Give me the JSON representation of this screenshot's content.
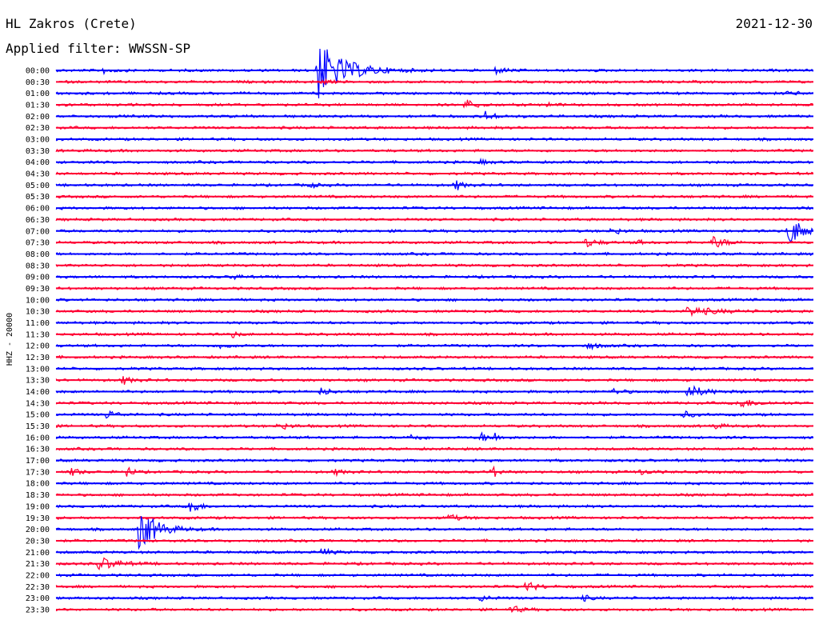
{
  "header": {
    "station": "HL Zakros (Crete)",
    "filter": "Applied filter: WWSSN-SP",
    "date": "2021-12-30"
  },
  "chart_data": {
    "type": "line",
    "title": "HL Zakros (Crete)",
    "subtitle": "Applied filter: WWSSN-SP",
    "ylabel": "HHZ - 20000",
    "colors": [
      "#0000ff",
      "#ff0033"
    ],
    "row_labels": [
      "00:00",
      "00:30",
      "01:00",
      "01:30",
      "02:00",
      "02:30",
      "03:00",
      "03:30",
      "04:00",
      "04:30",
      "05:00",
      "05:30",
      "06:00",
      "06:30",
      "07:00",
      "07:30",
      "08:00",
      "08:30",
      "09:00",
      "09:30",
      "10:00",
      "10:30",
      "11:00",
      "11:30",
      "12:00",
      "12:30",
      "13:00",
      "13:30",
      "14:00",
      "14:30",
      "15:00",
      "15:30",
      "16:00",
      "16:30",
      "17:00",
      "17:30",
      "18:00",
      "18:30",
      "19:00",
      "19:30",
      "20:00",
      "20:30",
      "21:00",
      "21:30",
      "22:00",
      "22:30",
      "23:00",
      "23:30"
    ],
    "row_minutes": 30,
    "events": [
      {
        "row": 0,
        "t": 10.3,
        "amp": 40,
        "dur": 1.6
      },
      {
        "row": 0,
        "t": 1.8,
        "amp": 4,
        "dur": 0.6
      },
      {
        "row": 0,
        "t": 17.4,
        "amp": 4,
        "dur": 0.6
      },
      {
        "row": 1,
        "t": 10.5,
        "amp": 3,
        "dur": 0.4
      },
      {
        "row": 2,
        "t": 29.0,
        "amp": 3,
        "dur": 0.5
      },
      {
        "row": 3,
        "t": 16.2,
        "amp": 7,
        "dur": 0.6
      },
      {
        "row": 3,
        "t": 0.2,
        "amp": 3,
        "dur": 0.3
      },
      {
        "row": 3,
        "t": 19.4,
        "amp": 3,
        "dur": 0.4
      },
      {
        "row": 3,
        "t": 31.5,
        "amp": 3,
        "dur": 0.3
      },
      {
        "row": 4,
        "t": 17.0,
        "amp": 6,
        "dur": 0.6
      },
      {
        "row": 4,
        "t": 42.4,
        "amp": 20,
        "dur": 1.0
      },
      {
        "row": 4,
        "t": 33.0,
        "amp": 95,
        "dur": 2.5
      },
      {
        "row": 5,
        "t": 33.0,
        "amp": 35,
        "dur": 1.5
      },
      {
        "row": 8,
        "t": 16.8,
        "amp": 3,
        "dur": 0.4
      },
      {
        "row": 9,
        "t": 50.0,
        "amp": 6,
        "dur": 0.8
      },
      {
        "row": 9,
        "t": 45.5,
        "amp": 4,
        "dur": 0.5
      },
      {
        "row": 10,
        "t": 15.8,
        "amp": 8,
        "dur": 0.4
      },
      {
        "row": 10,
        "t": 10.0,
        "amp": 4,
        "dur": 0.4
      },
      {
        "row": 10,
        "t": 32.8,
        "amp": 120,
        "dur": 3.0
      },
      {
        "row": 11,
        "t": 38.0,
        "amp": 9,
        "dur": 1.0
      },
      {
        "row": 11,
        "t": 53.1,
        "amp": 30,
        "dur": 1.4
      },
      {
        "row": 13,
        "t": 40.6,
        "amp": 6,
        "dur": 0.6
      },
      {
        "row": 13,
        "t": 53.0,
        "amp": 45,
        "dur": 1.8
      },
      {
        "row": 14,
        "t": 22.0,
        "amp": 5,
        "dur": 0.5
      },
      {
        "row": 14,
        "t": 29.0,
        "amp": 18,
        "dur": 1.0
      },
      {
        "row": 15,
        "t": 21.0,
        "amp": 6,
        "dur": 0.6
      },
      {
        "row": 15,
        "t": 26.0,
        "amp": 8,
        "dur": 0.7
      },
      {
        "row": 15,
        "t": 23.0,
        "amp": 3,
        "dur": 0.4
      },
      {
        "row": 18,
        "t": 7.0,
        "amp": 4,
        "dur": 0.4
      },
      {
        "row": 19,
        "t": 39.5,
        "amp": 4,
        "dur": 0.5
      },
      {
        "row": 20,
        "t": 31.2,
        "amp": 10,
        "dur": 0.6
      },
      {
        "row": 20,
        "t": 46.0,
        "amp": 90,
        "dur": 2.4
      },
      {
        "row": 21,
        "t": 25.0,
        "amp": 6,
        "dur": 1.5
      },
      {
        "row": 23,
        "t": 7.0,
        "amp": 4,
        "dur": 0.4
      },
      {
        "row": 24,
        "t": 6.5,
        "amp": 4,
        "dur": 0.5
      },
      {
        "row": 24,
        "t": 21.0,
        "amp": 5,
        "dur": 0.6
      },
      {
        "row": 27,
        "t": 2.6,
        "amp": 6,
        "dur": 0.5
      },
      {
        "row": 28,
        "t": 22.0,
        "amp": 4,
        "dur": 0.6
      },
      {
        "row": 28,
        "t": 25.0,
        "amp": 8,
        "dur": 1.0
      },
      {
        "row": 28,
        "t": 10.5,
        "amp": 5,
        "dur": 0.5
      },
      {
        "row": 29,
        "t": 27.0,
        "amp": 6,
        "dur": 1.0
      },
      {
        "row": 29,
        "t": 33.4,
        "amp": 10,
        "dur": 0.8
      },
      {
        "row": 29,
        "t": 52.0,
        "amp": 6,
        "dur": 0.8
      },
      {
        "row": 30,
        "t": 2.0,
        "amp": 5,
        "dur": 0.6
      },
      {
        "row": 30,
        "t": 24.8,
        "amp": 5,
        "dur": 0.5
      },
      {
        "row": 31,
        "t": 8.8,
        "amp": 5,
        "dur": 0.6
      },
      {
        "row": 31,
        "t": 26.0,
        "amp": 4,
        "dur": 0.5
      },
      {
        "row": 31,
        "t": 46.0,
        "amp": 4,
        "dur": 0.4
      },
      {
        "row": 31,
        "t": 53.5,
        "amp": 5,
        "dur": 0.5
      },
      {
        "row": 32,
        "t": 14.0,
        "amp": 5,
        "dur": 0.6
      },
      {
        "row": 32,
        "t": 17.3,
        "amp": 6,
        "dur": 0.4
      },
      {
        "row": 32,
        "t": 16.8,
        "amp": 6,
        "dur": 0.5
      },
      {
        "row": 32,
        "t": 46.5,
        "amp": 8,
        "dur": 0.5
      },
      {
        "row": 33,
        "t": 42.5,
        "amp": 12,
        "dur": 1.0
      },
      {
        "row": 33,
        "t": 54.2,
        "amp": 6,
        "dur": 0.8
      },
      {
        "row": 35,
        "t": 0.6,
        "amp": 5,
        "dur": 0.5
      },
      {
        "row": 35,
        "t": 2.8,
        "amp": 8,
        "dur": 0.3
      },
      {
        "row": 35,
        "t": 17.2,
        "amp": 10,
        "dur": 0.4
      },
      {
        "row": 35,
        "t": 11.0,
        "amp": 4,
        "dur": 0.5
      },
      {
        "row": 35,
        "t": 23.0,
        "amp": 4,
        "dur": 0.6
      },
      {
        "row": 38,
        "t": 5.3,
        "amp": 14,
        "dur": 0.4
      },
      {
        "row": 38,
        "t": 32.5,
        "amp": 4,
        "dur": 0.5
      },
      {
        "row": 39,
        "t": 15.5,
        "amp": 5,
        "dur": 0.6
      },
      {
        "row": 39,
        "t": 35.0,
        "amp": 4,
        "dur": 0.4
      },
      {
        "row": 39,
        "t": 51.0,
        "amp": 5,
        "dur": 0.5
      },
      {
        "row": 40,
        "t": 3.3,
        "amp": 30,
        "dur": 1.0
      },
      {
        "row": 40,
        "t": 44.2,
        "amp": 14,
        "dur": 0.9
      },
      {
        "row": 40,
        "t": 47.5,
        "amp": 6,
        "dur": 0.6
      },
      {
        "row": 41,
        "t": 42.6,
        "amp": 7,
        "dur": 0.8
      },
      {
        "row": 42,
        "t": 52.5,
        "amp": 10,
        "dur": 1.8
      },
      {
        "row": 42,
        "t": 10.5,
        "amp": 5,
        "dur": 0.5
      },
      {
        "row": 43,
        "t": 1.7,
        "amp": 9,
        "dur": 1.0
      },
      {
        "row": 43,
        "t": 47.0,
        "amp": 14,
        "dur": 3.0
      },
      {
        "row": 45,
        "t": 18.6,
        "amp": 6,
        "dur": 0.7
      },
      {
        "row": 45,
        "t": 36.0,
        "amp": 14,
        "dur": 0.9
      },
      {
        "row": 46,
        "t": 52.3,
        "amp": 14,
        "dur": 1.4
      },
      {
        "row": 46,
        "t": 16.8,
        "amp": 4,
        "dur": 0.5
      },
      {
        "row": 46,
        "t": 20.8,
        "amp": 4,
        "dur": 0.5
      },
      {
        "row": 47,
        "t": 18.0,
        "amp": 5,
        "dur": 0.6
      },
      {
        "row": 47,
        "t": 42.0,
        "amp": 6,
        "dur": 0.6
      }
    ]
  }
}
